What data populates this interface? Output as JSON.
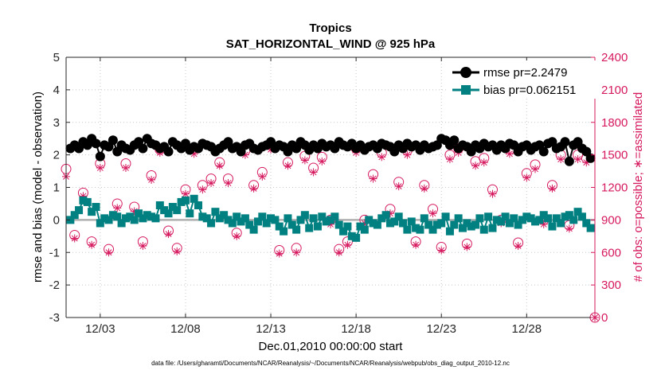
{
  "chart_data": {
    "type": "line",
    "title": "Tropics",
    "subtitle": "SAT_HORIZONTAL_WIND @ 925 hPa",
    "xlabel": "Dec.01,2010 00:00:00 start",
    "ylabel_left": "rmse and bias (model - observation)",
    "ylabel_right": "# of obs: o=possible; ∗=assimilated",
    "footnote": "data file: /Users/gharamti/Documents/NCAR/Reanalysis/~/Documents/NCAR/Reanalysis/webpub/obs_diag_output_2010-12.nc",
    "xlim": [
      1.0,
      32.0
    ],
    "ylim_left": [
      -3,
      5
    ],
    "ylim_right": [
      0,
      2400
    ],
    "x_ticks": [
      3,
      8,
      13,
      18,
      23,
      28
    ],
    "x_tick_labels": [
      "12/03",
      "12/08",
      "12/13",
      "12/18",
      "12/23",
      "12/28"
    ],
    "y_ticks_left": [
      -3,
      -2,
      -1,
      0,
      1,
      2,
      3,
      4,
      5
    ],
    "y_tick_labels_left": [
      "-3",
      "-2",
      "-1",
      "0",
      "1",
      "2",
      "3",
      "4",
      "5"
    ],
    "y_ticks_right": [
      0,
      300,
      600,
      900,
      1200,
      1500,
      1800,
      2100,
      2400
    ],
    "y_tick_labels_right": [
      "0",
      "300",
      "600",
      "900",
      "1200",
      "1500",
      "1800",
      "2100",
      "2400"
    ],
    "grid": "dotted",
    "legend_placement": "top-right",
    "colors": {
      "rmse": "#000000",
      "bias": "#008080",
      "obs": "#D6185E",
      "zero_line": "#b0b0b0"
    },
    "x": [
      1.25,
      1.5,
      1.75,
      2.0,
      2.25,
      2.5,
      2.75,
      3.0,
      3.25,
      3.5,
      3.75,
      4.0,
      4.25,
      4.5,
      4.75,
      5.0,
      5.25,
      5.5,
      5.75,
      6.0,
      6.25,
      6.5,
      6.75,
      7.0,
      7.25,
      7.5,
      7.75,
      8.0,
      8.25,
      8.5,
      8.75,
      9.0,
      9.25,
      9.5,
      9.75,
      10.0,
      10.25,
      10.5,
      10.75,
      11.0,
      11.25,
      11.5,
      11.75,
      12.0,
      12.25,
      12.5,
      12.75,
      13.0,
      13.25,
      13.5,
      13.75,
      14.0,
      14.25,
      14.5,
      14.75,
      15.0,
      15.25,
      15.5,
      15.75,
      16.0,
      16.25,
      16.5,
      16.75,
      17.0,
      17.25,
      17.5,
      17.75,
      18.0,
      18.25,
      18.5,
      18.75,
      19.0,
      19.25,
      19.5,
      19.75,
      20.0,
      20.25,
      20.5,
      20.75,
      21.0,
      21.25,
      21.5,
      21.75,
      22.0,
      22.25,
      22.5,
      22.75,
      23.0,
      23.25,
      23.5,
      23.75,
      24.0,
      24.25,
      24.5,
      24.75,
      25.0,
      25.25,
      25.5,
      25.75,
      26.0,
      26.25,
      26.5,
      26.75,
      27.0,
      27.25,
      27.5,
      27.75,
      28.0,
      28.25,
      28.5,
      28.75,
      29.0,
      29.25,
      29.5,
      29.75,
      30.0,
      30.25,
      30.5,
      30.75,
      31.0,
      31.25,
      31.5,
      31.75
    ],
    "series": [
      {
        "name": "rmse pr=2.2479",
        "marker": "circle",
        "values": [
          2.2,
          2.3,
          2.2,
          2.4,
          2.3,
          2.5,
          2.35,
          1.95,
          2.3,
          2.25,
          2.45,
          2.1,
          2.3,
          2.2,
          2.15,
          2.3,
          2.4,
          2.2,
          2.5,
          2.35,
          2.3,
          2.2,
          2.25,
          2.1,
          2.4,
          2.3,
          2.2,
          2.35,
          2.15,
          2.25,
          2.2,
          2.35,
          2.3,
          2.25,
          2.1,
          2.2,
          2.3,
          2.4,
          2.2,
          2.25,
          2.1,
          2.3,
          2.35,
          2.2,
          2.15,
          2.25,
          2.3,
          2.4,
          2.2,
          2.3,
          2.25,
          2.1,
          2.3,
          2.2,
          2.4,
          2.3,
          2.15,
          2.3,
          2.2,
          2.35,
          2.25,
          2.3,
          2.2,
          2.4,
          2.3,
          2.25,
          2.35,
          2.2,
          2.3,
          2.15,
          2.25,
          2.3,
          2.2,
          2.35,
          2.3,
          2.25,
          2.1,
          2.3,
          2.2,
          2.35,
          2.25,
          2.3,
          2.15,
          2.3,
          2.2,
          2.25,
          2.3,
          2.5,
          2.45,
          2.3,
          2.45,
          2.2,
          2.3,
          2.25,
          2.1,
          2.3,
          2.2,
          2.35,
          2.25,
          2.3,
          2.15,
          2.3,
          2.2,
          2.35,
          2.3,
          2.1,
          2.25,
          2.3,
          2.15,
          2.25,
          2.3,
          2.1,
          2.35,
          2.4,
          2.2,
          2.25,
          2.4,
          1.8,
          2.3,
          2.4,
          2.2,
          2.1,
          1.9
        ]
      },
      {
        "name": "bias pr=0.062151",
        "marker": "square",
        "values": [
          0.0,
          0.15,
          0.3,
          0.6,
          0.55,
          0.25,
          0.4,
          -0.1,
          0.05,
          0.0,
          0.15,
          0.1,
          -0.1,
          0.05,
          0.1,
          0.0,
          0.2,
          0.05,
          0.15,
          0.1,
          0.05,
          0.45,
          0.3,
          0.2,
          0.4,
          0.3,
          0.55,
          0.6,
          0.2,
          0.65,
          0.45,
          0.1,
          0.05,
          -0.1,
          0.25,
          0.05,
          0.15,
          0.0,
          -0.1,
          0.1,
          -0.05,
          0.05,
          -0.15,
          -0.3,
          -0.05,
          0.1,
          -0.1,
          0.05,
          0.0,
          -0.2,
          -0.35,
          0.05,
          -0.15,
          -0.3,
          0.0,
          0.15,
          -0.25,
          0.05,
          -0.2,
          0.1,
          -0.05,
          0.0,
          0.1,
          -0.15,
          -0.35,
          -0.2,
          -0.5,
          -0.55,
          -0.2,
          -0.3,
          0.0,
          -0.1,
          -0.15,
          0.05,
          0.15,
          -0.1,
          -0.05,
          0.1,
          -0.1,
          -0.3,
          -0.05,
          -0.25,
          -0.3,
          0.05,
          -0.15,
          -0.3,
          -0.15,
          -0.1,
          0.1,
          -0.35,
          -0.15,
          0.05,
          -0.25,
          -0.1,
          -0.2,
          -0.15,
          0.05,
          -0.3,
          0.1,
          -0.25,
          0.0,
          -0.05,
          0.1,
          -0.1,
          0.05,
          -0.15,
          0.0,
          0.1,
          0.05,
          -0.05,
          0.0,
          0.15,
          0.05,
          -0.2,
          0.05,
          -0.1,
          0.1,
          0.15,
          0.0,
          0.25,
          0.1,
          -0.1,
          -0.25
        ]
      },
      {
        "name": "obs possible",
        "marker": "open-circle",
        "axis": "right",
        "x": [
          1.0,
          1.5,
          2.0,
          2.5,
          3.0,
          3.5,
          4.0,
          4.5,
          5.0,
          5.5,
          6.0,
          6.5,
          7.0,
          7.5,
          8.0,
          8.5,
          9.0,
          9.5,
          10.0,
          10.5,
          11.0,
          11.5,
          12.0,
          12.5,
          13.0,
          13.5,
          14.0,
          14.5,
          15.0,
          15.5,
          16.0,
          16.5,
          17.0,
          17.5,
          18.0,
          18.5,
          19.0,
          19.5,
          20.0,
          20.5,
          21.0,
          21.5,
          22.0,
          22.5,
          23.0,
          23.5,
          24.0,
          24.5,
          25.0,
          25.5,
          26.0,
          26.5,
          27.0,
          27.5,
          28.0,
          28.5,
          29.0,
          29.5,
          30.0,
          30.5,
          31.0,
          31.5,
          32.0
        ],
        "values": [
          1370,
          760,
          1150,
          700,
          1420,
          630,
          1050,
          1420,
          1020,
          700,
          1310,
          1550,
          800,
          640,
          1180,
          1560,
          1220,
          1280,
          1430,
          1280,
          780,
          1540,
          1220,
          1340,
          1590,
          620,
          1430,
          640,
          1490,
          1380,
          1480,
          900,
          630,
          700,
          1560,
          900,
          1320,
          1520,
          1000,
          1250,
          1540,
          700,
          1220,
          1000,
          650,
          1500,
          1560,
          680,
          1440,
          1470,
          1180,
          900,
          1550,
          690,
          1330,
          1410,
          900,
          1220,
          1500,
          850,
          1500,
          1470,
          0
        ]
      },
      {
        "name": "obs assimilated",
        "marker": "asterisk",
        "axis": "right",
        "x": [
          1.0,
          1.5,
          2.0,
          2.5,
          3.0,
          3.5,
          4.0,
          4.5,
          5.0,
          5.5,
          6.0,
          6.5,
          7.0,
          7.5,
          8.0,
          8.5,
          9.0,
          9.5,
          10.0,
          10.5,
          11.0,
          11.5,
          12.0,
          12.5,
          13.0,
          13.5,
          14.0,
          14.5,
          15.0,
          15.5,
          16.0,
          16.5,
          17.0,
          17.5,
          18.0,
          18.5,
          19.0,
          19.5,
          20.0,
          20.5,
          21.0,
          21.5,
          22.0,
          22.5,
          23.0,
          23.5,
          24.0,
          24.5,
          25.0,
          25.5,
          26.0,
          26.5,
          27.0,
          27.5,
          28.0,
          28.5,
          29.0,
          29.5,
          30.0,
          30.5,
          31.0,
          31.5,
          32.0
        ],
        "values": [
          1300,
          730,
          1120,
          670,
          1380,
          600,
          1010,
          1380,
          980,
          660,
          1270,
          1520,
          770,
          610,
          1140,
          1510,
          1180,
          1240,
          1400,
          1240,
          750,
          1500,
          1190,
          1300,
          1550,
          590,
          1400,
          600,
          1450,
          1340,
          1440,
          860,
          600,
          670,
          1520,
          870,
          1280,
          1480,
          960,
          1210,
          1500,
          670,
          1190,
          960,
          620,
          1460,
          1520,
          650,
          1400,
          1430,
          1140,
          870,
          1510,
          660,
          1290,
          1370,
          860,
          1190,
          1460,
          820,
          1460,
          1430,
          0
        ]
      }
    ]
  }
}
